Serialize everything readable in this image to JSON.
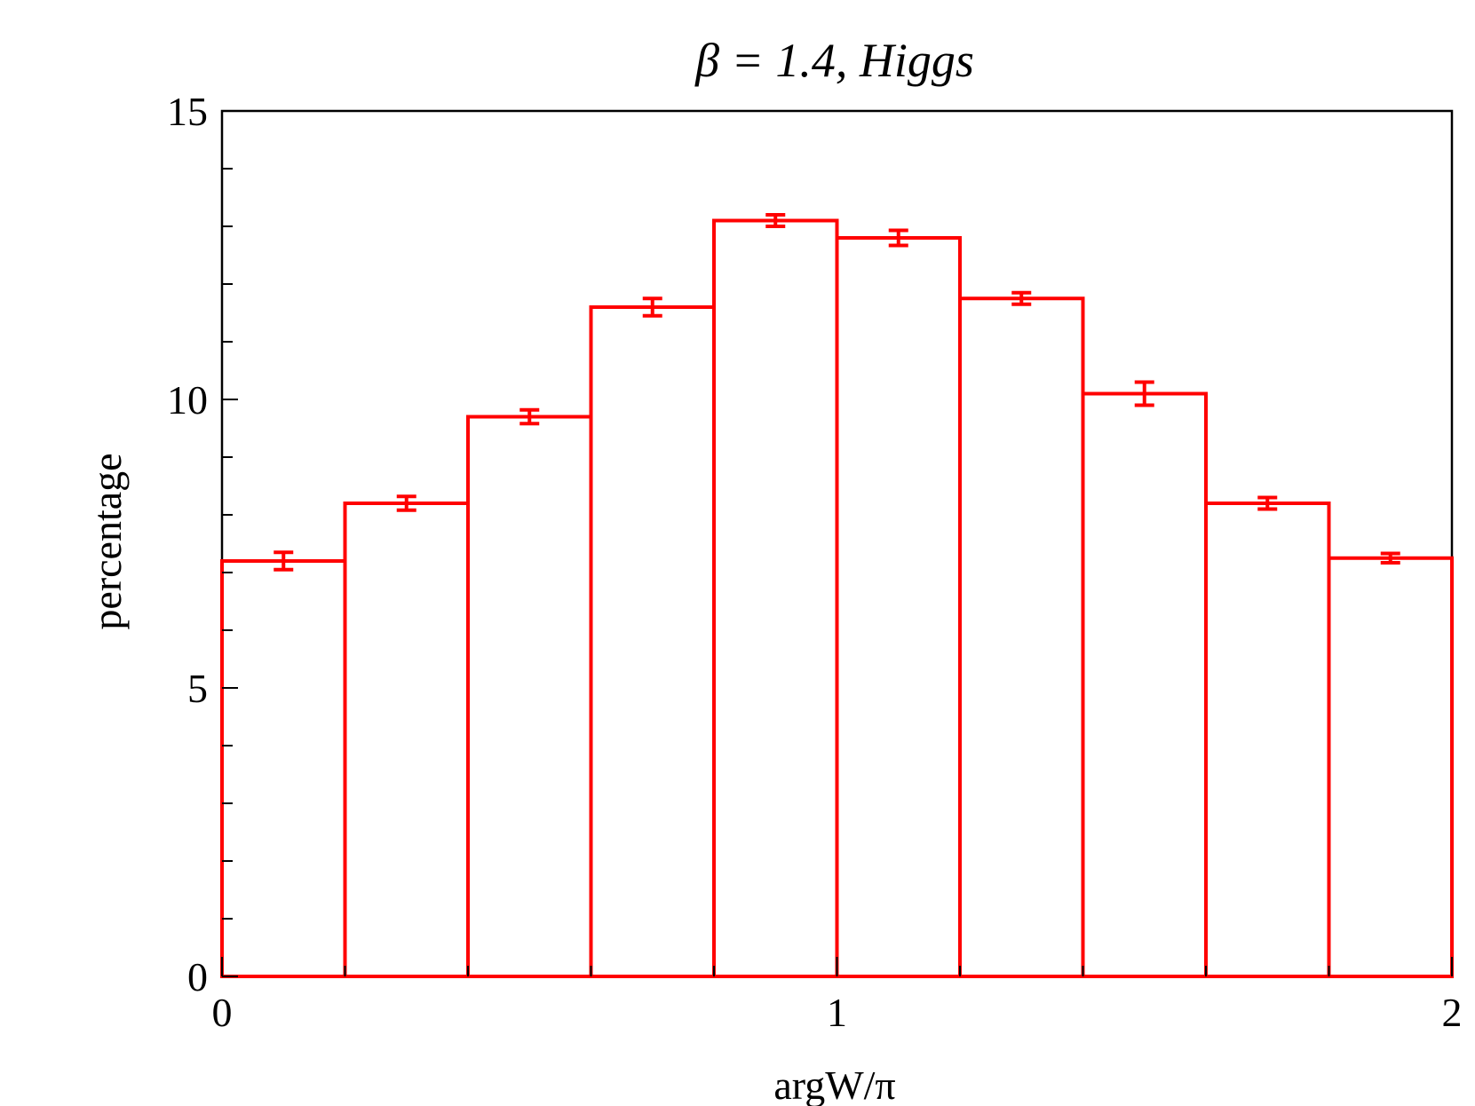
{
  "chart_data": {
    "type": "bar",
    "style": "step-histogram",
    "title": "β = 1.4, Higgs",
    "xlabel": "argW/π",
    "ylabel": "percentage",
    "xlim": [
      0,
      2
    ],
    "ylim": [
      0,
      15
    ],
    "x_ticks": [
      "0",
      "1",
      "2"
    ],
    "y_ticks": [
      "0",
      "5",
      "10",
      "15"
    ],
    "bin_edges": [
      0,
      0.2,
      0.4,
      0.6,
      0.8,
      1.0,
      1.2,
      1.4,
      1.6,
      1.8,
      2.0
    ],
    "values": [
      7.2,
      8.2,
      9.7,
      11.6,
      13.1,
      12.8,
      11.75,
      10.1,
      8.2,
      7.25
    ],
    "errors": [
      0.15,
      0.12,
      0.12,
      0.15,
      0.1,
      0.13,
      0.1,
      0.2,
      0.1,
      0.08
    ],
    "grid": false,
    "color": "#ff0000"
  }
}
